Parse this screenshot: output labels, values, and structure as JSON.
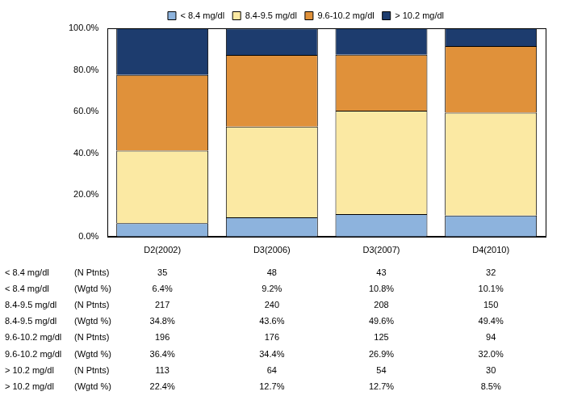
{
  "chart_data": {
    "type": "bar",
    "stacked": true,
    "grid": false,
    "legend": "top",
    "categories": [
      "D2(2002)",
      "D3(2006)",
      "D3(2007)",
      "D4(2010)"
    ],
    "ylim": [
      0,
      100
    ],
    "yticks": [
      {
        "value": 0,
        "label": "0.0%"
      },
      {
        "value": 20,
        "label": "20.0%"
      },
      {
        "value": 40,
        "label": "40.0%"
      },
      {
        "value": 60,
        "label": "60.0%"
      },
      {
        "value": 80,
        "label": "80.0%"
      },
      {
        "value": 100,
        "label": "100.0%"
      }
    ],
    "series": [
      {
        "name": "< 8.4 mg/dl",
        "color": "#8db3dd",
        "values": [
          6.4,
          9.2,
          10.8,
          10.1
        ],
        "value_labels": [
          "6.4%",
          "9.2%",
          "10.8%",
          "10.1%"
        ],
        "n_patients": [
          35,
          48,
          43,
          32
        ]
      },
      {
        "name": "8.4-9.5 mg/dl",
        "color": "#fbe9a3",
        "values": [
          34.8,
          43.6,
          49.6,
          49.4
        ],
        "value_labels": [
          "34.8%",
          "43.6%",
          "49.6%",
          "49.4%"
        ],
        "n_patients": [
          217,
          240,
          208,
          150
        ]
      },
      {
        "name": "9.6-10.2 mg/dl",
        "color": "#e0913a",
        "values": [
          36.4,
          34.4,
          26.9,
          32.0
        ],
        "value_labels": [
          "36.4%",
          "34.4%",
          "26.9%",
          "32.0%"
        ],
        "n_patients": [
          196,
          176,
          125,
          94
        ]
      },
      {
        "name": "> 10.2 mg/dl",
        "color": "#1d3c6e",
        "values": [
          22.4,
          12.7,
          12.7,
          8.5
        ],
        "value_labels": [
          "22.4%",
          "12.7%",
          "12.7%",
          "8.5%"
        ],
        "n_patients": [
          113,
          64,
          54,
          30
        ]
      }
    ],
    "table": {
      "n_patients_label": "(N Ptnts)",
      "values_label": "(Wgtd %)"
    }
  }
}
